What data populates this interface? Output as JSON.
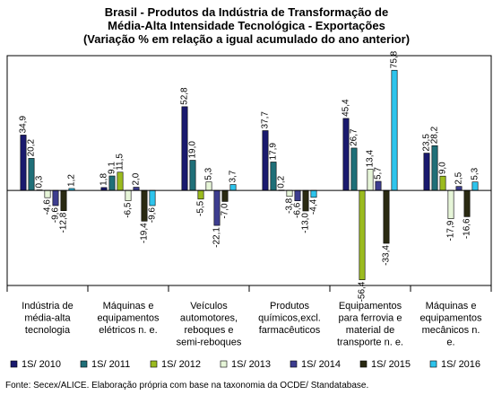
{
  "chart_data": {
    "type": "bar",
    "title": [
      "Brasil - Produtos da Indústria de Transformação de",
      "Média-Alta Intensidade Tecnológica - Exportações",
      "(Variação % em relação a igual acumulado do ano anterior)"
    ],
    "categories": [
      [
        "Indústria de",
        "média-alta",
        "tecnologia"
      ],
      [
        "Máquinas e",
        "equipamentos",
        "elétricos n. e."
      ],
      [
        "Veículos",
        "automotores,",
        "reboques e",
        "semi-reboques"
      ],
      [
        "Produtos",
        "químicos,excl.",
        "farmacêuticos"
      ],
      [
        "Equipamentos",
        "para ferrovia e",
        "material de",
        "transporte n. e."
      ],
      [
        "Máquinas e",
        "equipamentos",
        "mecânicos n.",
        "e."
      ]
    ],
    "series": [
      {
        "name": "1S/ 2010",
        "color": "#1a1a6e",
        "values": [
          34.9,
          1.8,
          52.8,
          37.7,
          45.4,
          23.5
        ]
      },
      {
        "name": "1S/ 2011",
        "color": "#1f6f78",
        "values": [
          20.2,
          9.1,
          19.0,
          17.9,
          26.7,
          28.2
        ]
      },
      {
        "name": "1S/ 2012",
        "color": "#9bbb1f",
        "values": [
          0.3,
          11.5,
          -5.5,
          0.2,
          -56.4,
          9.0
        ]
      },
      {
        "name": "1S/ 2013",
        "color": "#e6f5d8",
        "values": [
          -4.6,
          -6.5,
          5.3,
          -3.8,
          13.4,
          -17.9
        ]
      },
      {
        "name": "1S/ 2014",
        "color": "#3d3d8f",
        "values": [
          -9.6,
          2.0,
          -22.1,
          -6.6,
          5.7,
          2.5
        ]
      },
      {
        "name": "1S/ 2015",
        "color": "#2a2a12",
        "values": [
          -12.8,
          -19.4,
          -7.0,
          -13.0,
          -33.4,
          -16.6
        ]
      },
      {
        "name": "1S/ 2016",
        "color": "#2ec4ec",
        "values": [
          1.2,
          -9.6,
          3.7,
          -4.4,
          75.8,
          5.3
        ]
      }
    ],
    "ylim": [
      -60,
      85
    ],
    "grid": false,
    "legend_position": "bottom",
    "source": "Fonte: Secex/ALICE. Elaboração própria com base na taxonomia da OCDE/ Standatabase."
  }
}
